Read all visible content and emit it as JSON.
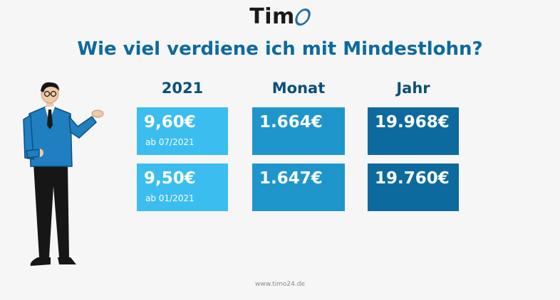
{
  "logo": {
    "text": "Tim"
  },
  "headline": "Wie viel verdiene ich mit Mindestlohn?",
  "columns": [
    "2021",
    "Monat",
    "Jahr"
  ],
  "rows": [
    {
      "hourly": "9,60€",
      "since": "ab 07/2021",
      "monthly": "1.664€",
      "yearly": "19.968€"
    },
    {
      "hourly": "9,50€",
      "since": "ab 01/2021",
      "monthly": "1.647€",
      "yearly": "19.760€"
    }
  ],
  "footer": "www.timo24.de",
  "colors": {
    "title": "#0d6a9e",
    "card_light": "#3bbdf0",
    "card_medium": "#1e96cc",
    "card_dark": "#0d6a9e"
  },
  "illustration": "businessman-pointing-illustration"
}
